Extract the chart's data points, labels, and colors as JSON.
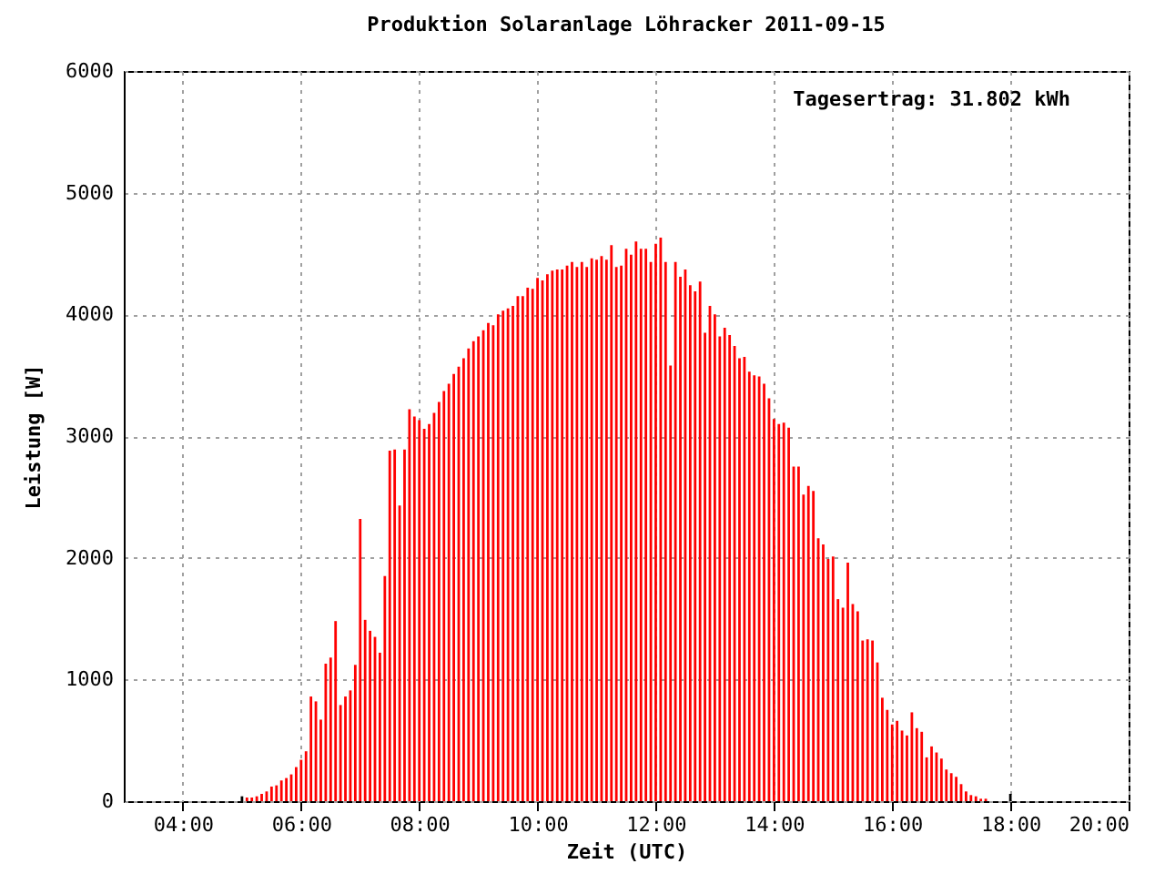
{
  "chart_data": {
    "type": "bar",
    "title": "Produktion Solaranlage Löhracker 2011-09-15",
    "xlabel": "Zeit (UTC)",
    "ylabel": "Leistung [W]",
    "annotations": [
      "Tagesertrag: 31.802 kWh"
    ],
    "xlim": [
      3,
      20
    ],
    "xticks": [
      {
        "value": 4,
        "label": "04:00"
      },
      {
        "value": 6,
        "label": "06:00"
      },
      {
        "value": 8,
        "label": "08:00"
      },
      {
        "value": 10,
        "label": "10:00"
      },
      {
        "value": 12,
        "label": "12:00"
      },
      {
        "value": 14,
        "label": "14:00"
      },
      {
        "value": 16,
        "label": "16:00"
      },
      {
        "value": 18,
        "label": "18:00"
      },
      {
        "value": 20,
        "label": "20:00"
      }
    ],
    "ylim": [
      0,
      6000
    ],
    "yticks": [
      0,
      1000,
      2000,
      3000,
      4000,
      5000,
      6000
    ],
    "grid": true,
    "series": [
      {
        "color": "#ff0000",
        "x": [
          5.0833,
          5.1667,
          5.25,
          5.3333,
          5.4167,
          5.5,
          5.5833,
          5.6667,
          5.75,
          5.8333,
          5.9167,
          6,
          6.0833,
          6.1667,
          6.25,
          6.3333,
          6.4167,
          6.5,
          6.5833,
          6.6667,
          6.75,
          6.8333,
          6.9167,
          7,
          7.0833,
          7.1667,
          7.25,
          7.3333,
          7.4167,
          7.5,
          7.5833,
          7.6667,
          7.75,
          7.8333,
          7.9167,
          8,
          8.0833,
          8.1667,
          8.25,
          8.3333,
          8.4167,
          8.5,
          8.5833,
          8.6667,
          8.75,
          8.8333,
          8.9167,
          9,
          9.0833,
          9.1667,
          9.25,
          9.3333,
          9.4167,
          9.5,
          9.5833,
          9.6667,
          9.75,
          9.8333,
          9.9167,
          10,
          10.0833,
          10.1667,
          10.25,
          10.3333,
          10.4167,
          10.5,
          10.5833,
          10.6667,
          10.75,
          10.8333,
          10.9167,
          11,
          11.0833,
          11.1667,
          11.25,
          11.3333,
          11.4167,
          11.5,
          11.5833,
          11.6667,
          11.75,
          11.8333,
          11.9167,
          12,
          12.0833,
          12.1667,
          12.25,
          12.3333,
          12.4167,
          12.5,
          12.5833,
          12.6667,
          12.75,
          12.8333,
          12.9167,
          13,
          13.0833,
          13.1667,
          13.25,
          13.3333,
          13.4167,
          13.5,
          13.5833,
          13.6667,
          13.75,
          13.8333,
          13.9167,
          14,
          14.0833,
          14.1667,
          14.25,
          14.3333,
          14.4167,
          14.5,
          14.5833,
          14.6667,
          14.75,
          14.8333,
          14.9167,
          15,
          15.0833,
          15.1667,
          15.25,
          15.3333,
          15.4167,
          15.5,
          15.5833,
          15.6667,
          15.75,
          15.8333,
          15.9167,
          16,
          16.0833,
          16.1667,
          16.25,
          16.3333,
          16.4167,
          16.5,
          16.5833,
          16.6667,
          16.75,
          16.8333,
          16.9167,
          17,
          17.0833,
          17.1667,
          17.25,
          17.3333,
          17.4167,
          17.5,
          17.5833
        ],
        "values": [
          30,
          30,
          40,
          60,
          80,
          120,
          130,
          170,
          190,
          220,
          280,
          340,
          410,
          860,
          820,
          670,
          1130,
          1180,
          1480,
          790,
          860,
          910,
          1120,
          2320,
          1490,
          1400,
          1350,
          1220,
          1850,
          2880,
          2890,
          2430,
          2890,
          3220,
          3160,
          3130,
          3060,
          3100,
          3190,
          3280,
          3370,
          3430,
          3510,
          3570,
          3640,
          3720,
          3780,
          3820,
          3870,
          3930,
          3910,
          4000,
          4030,
          4050,
          4070,
          4150,
          4150,
          4220,
          4210,
          4300,
          4280,
          4330,
          4360,
          4370,
          4370,
          4400,
          4430,
          4390,
          4430,
          4390,
          4460,
          4450,
          4480,
          4450,
          4570,
          4390,
          4400,
          4540,
          4490,
          4600,
          4540,
          4540,
          4430,
          4580,
          4630,
          4430,
          3580,
          4430,
          4310,
          4370,
          4240,
          4190,
          4270,
          3850,
          4070,
          4000,
          3820,
          3890,
          3830,
          3740,
          3640,
          3650,
          3530,
          3500,
          3490,
          3430,
          3310,
          3140,
          3100,
          3110,
          3070,
          2750,
          2750,
          2520,
          2590,
          2550,
          2160,
          2110,
          1990,
          2010,
          1660,
          1590,
          1960,
          1620,
          1560,
          1320,
          1330,
          1320,
          1140,
          850,
          750,
          630,
          660,
          580,
          540,
          730,
          600,
          570,
          360,
          450,
          400,
          350,
          260,
          230,
          200,
          140,
          80,
          50,
          40,
          20,
          20
        ]
      },
      {
        "color": "#000000",
        "x": [
          5,
          18
        ],
        "values": [
          40,
          60
        ]
      }
    ]
  }
}
